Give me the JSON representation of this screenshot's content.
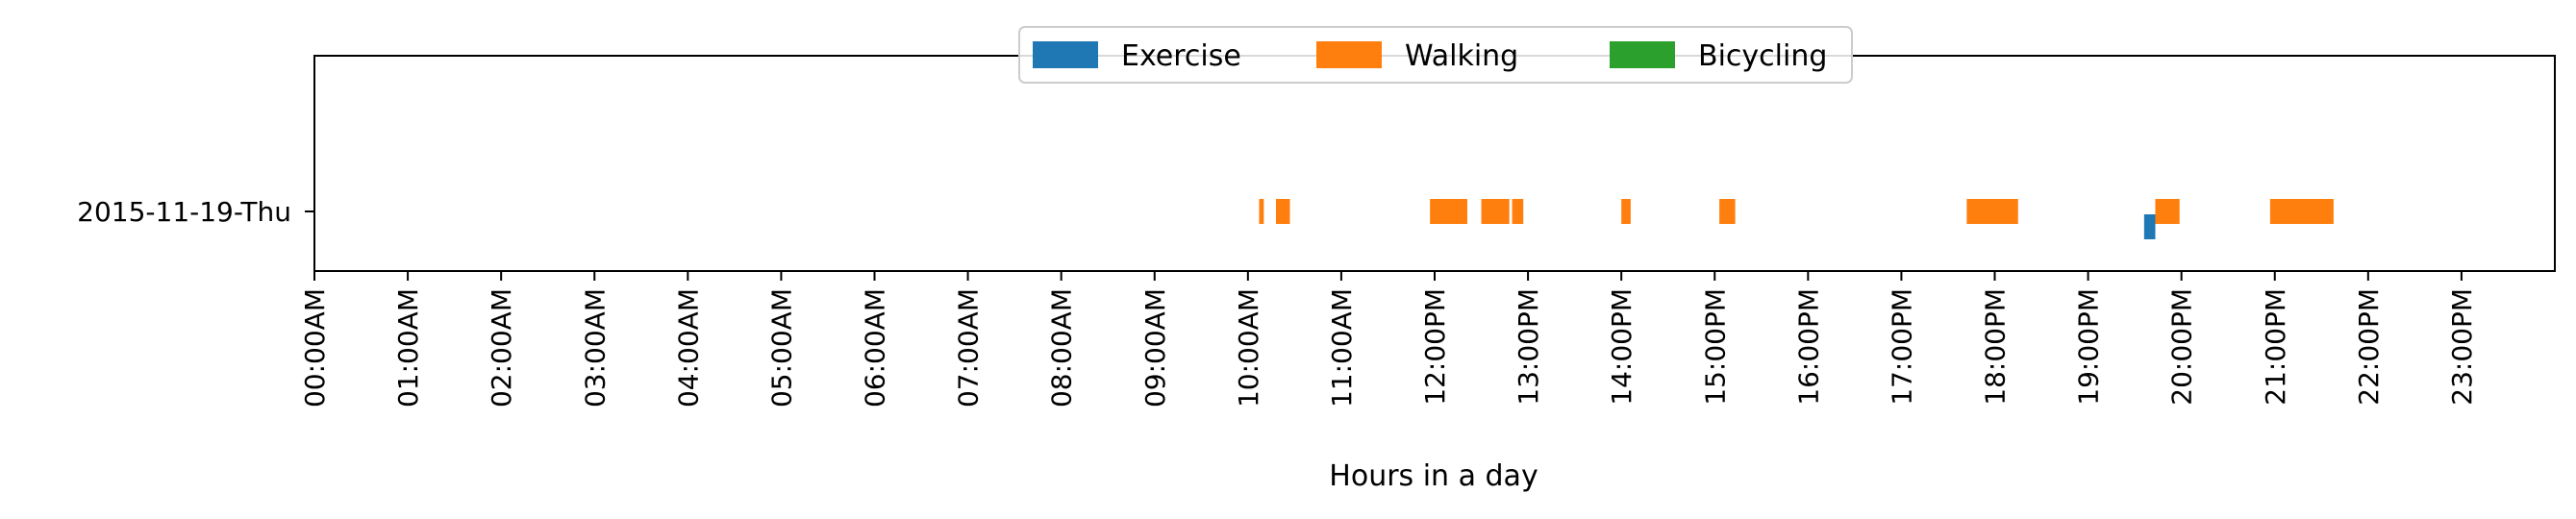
{
  "chart_data": {
    "type": "broken_barh",
    "title": "",
    "xlabel": "Hours in a day",
    "ylabel": "",
    "xlim": [
      0,
      24
    ],
    "x_ticks": [
      0,
      1,
      2,
      3,
      4,
      5,
      6,
      7,
      8,
      9,
      10,
      11,
      12,
      13,
      14,
      15,
      16,
      17,
      18,
      19,
      20,
      21,
      22,
      23
    ],
    "x_tick_labels": [
      "00:00AM",
      "01:00AM",
      "02:00AM",
      "03:00AM",
      "04:00AM",
      "05:00AM",
      "06:00AM",
      "07:00AM",
      "08:00AM",
      "09:00AM",
      "10:00AM",
      "11:00AM",
      "12:00PM",
      "13:00PM",
      "14:00PM",
      "15:00PM",
      "16:00PM",
      "17:00PM",
      "18:00PM",
      "19:00PM",
      "20:00PM",
      "21:00PM",
      "22:00PM",
      "23:00PM"
    ],
    "y_tick_labels": [
      "2015-11-19-Thu"
    ],
    "legend": {
      "location": "upper center",
      "entries": [
        {
          "name": "Exercise",
          "color": "#1f77b4"
        },
        {
          "name": "Walking",
          "color": "#ff7f0e"
        },
        {
          "name": "Bicycling",
          "color": "#2ca02c"
        }
      ]
    },
    "series": [
      {
        "name": "Exercise",
        "color": "#1f77b4",
        "row": "2015-11-19-Thu",
        "lane": "lower",
        "intervals": [
          [
            19.6,
            19.72
          ]
        ]
      },
      {
        "name": "Walking",
        "color": "#ff7f0e",
        "row": "2015-11-19-Thu",
        "lane": "main",
        "intervals": [
          [
            10.12,
            10.17
          ],
          [
            10.3,
            10.45
          ],
          [
            11.95,
            12.35
          ],
          [
            12.5,
            12.8
          ],
          [
            12.83,
            12.95
          ],
          [
            14.0,
            14.1
          ],
          [
            15.05,
            15.22
          ],
          [
            17.7,
            18.25
          ],
          [
            19.72,
            19.98
          ],
          [
            20.95,
            21.63
          ]
        ]
      },
      {
        "name": "Bicycling",
        "color": "#2ca02c",
        "row": "2015-11-19-Thu",
        "lane": "main",
        "intervals": []
      }
    ]
  }
}
